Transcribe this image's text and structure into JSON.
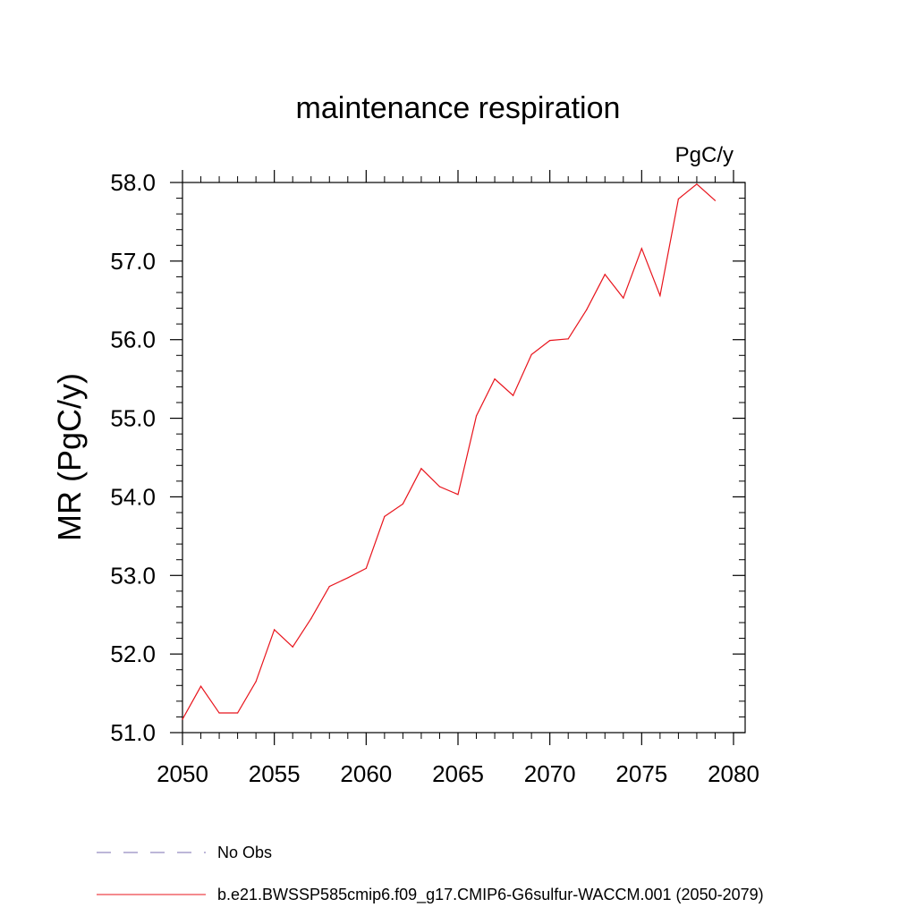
{
  "chart_data": {
    "type": "line",
    "title": "maintenance respiration",
    "units_label": "PgC/y",
    "ylabel": "MR  (PgC/y)",
    "xlabel": "",
    "xlim": [
      2050,
      2080
    ],
    "ylim": [
      51.0,
      58.0
    ],
    "x_ticks": [
      2050,
      2055,
      2060,
      2065,
      2070,
      2075,
      2080
    ],
    "y_ticks": [
      51.0,
      52.0,
      53.0,
      54.0,
      55.0,
      56.0,
      57.0,
      58.0
    ],
    "x_tick_labels": [
      "2050",
      "2055",
      "2060",
      "2065",
      "2070",
      "2075",
      "2080"
    ],
    "y_tick_labels": [
      "51.0",
      "52.0",
      "53.0",
      "54.0",
      "55.0",
      "56.0",
      "57.0",
      "58.0"
    ],
    "grid": false,
    "legend_position": "bottom",
    "legend": [
      {
        "label": "No Obs",
        "color": "#7b6fb0",
        "dash": "dashed"
      },
      {
        "label": "b.e21.BWSSP585cmip6.f09_g17.CMIP6-G6sulfur-WACCM.001 (2050-2079)",
        "color": "#e8141c",
        "dash": "solid"
      }
    ],
    "series": [
      {
        "color": "#e8141c",
        "x": [
          2050,
          2051,
          2052,
          2053,
          2054,
          2055,
          2056,
          2057,
          2058,
          2059,
          2060,
          2061,
          2062,
          2063,
          2064,
          2065,
          2066,
          2067,
          2068,
          2069,
          2070,
          2071,
          2072,
          2073,
          2074,
          2075,
          2076,
          2077,
          2078,
          2079
        ],
        "values": [
          51.17,
          51.59,
          51.25,
          51.25,
          51.65,
          52.31,
          52.09,
          52.45,
          52.86,
          52.97,
          53.09,
          53.75,
          53.91,
          54.36,
          54.13,
          54.03,
          55.03,
          55.5,
          55.29,
          55.81,
          55.99,
          56.01,
          56.38,
          56.83,
          56.53,
          57.16,
          56.56,
          57.79,
          57.98,
          57.77
        ]
      }
    ]
  }
}
